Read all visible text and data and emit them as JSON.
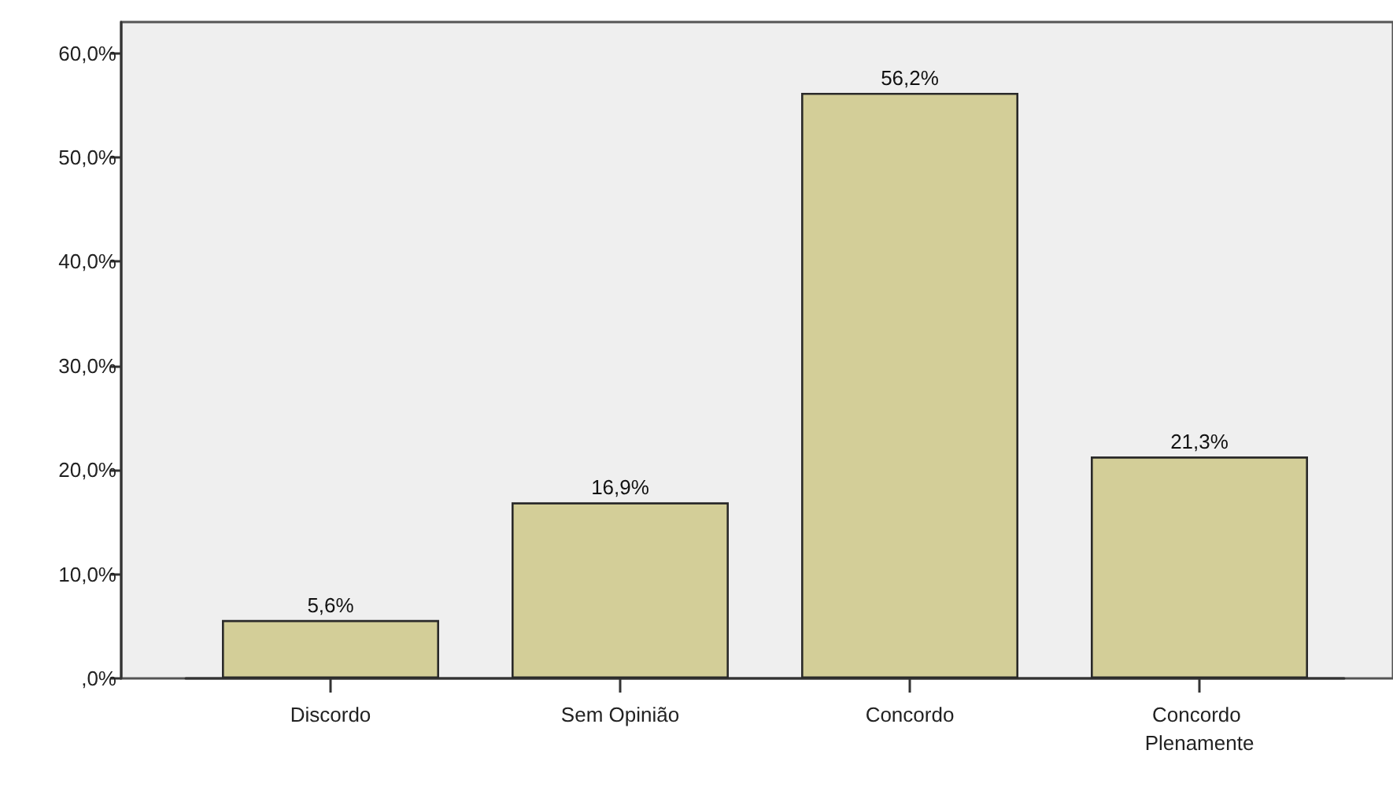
{
  "chart_data": {
    "type": "bar",
    "categories": [
      "Discordo",
      "Sem Opinião",
      "Concordo",
      "Concordo Plenamente"
    ],
    "values": [
      5.6,
      16.9,
      56.2,
      21.3
    ],
    "value_labels": [
      "5,6%",
      "16,9%",
      "56,2%",
      "21,3%"
    ],
    "color": "#d3ce98",
    "ylim": [
      0,
      63
    ],
    "yticks": [
      {
        "value": 0,
        "label": ",0%"
      },
      {
        "value": 10,
        "label": "10,0%"
      },
      {
        "value": 20,
        "label": "20,0%"
      },
      {
        "value": 30,
        "label": "30,0%"
      },
      {
        "value": 40,
        "label": "40,0%"
      },
      {
        "value": 50,
        "label": "50,0%"
      },
      {
        "value": 60,
        "label": "60,0%"
      }
    ]
  }
}
